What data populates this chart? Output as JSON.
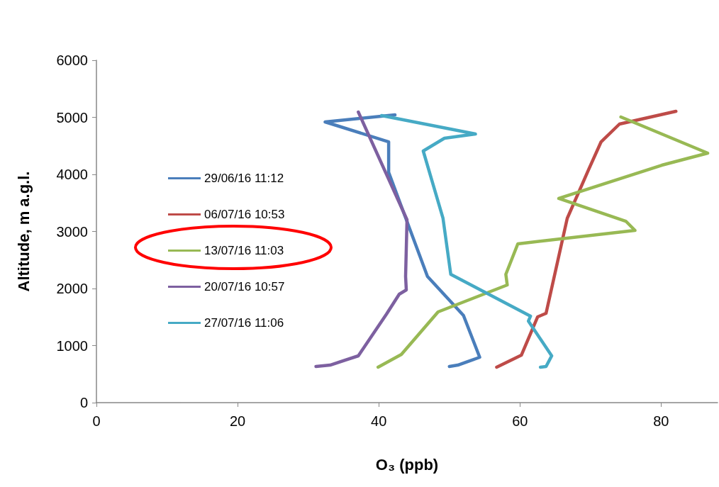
{
  "chart_data": {
    "type": "line",
    "xlabel": "O₃ (ppb)",
    "ylabel": "Altitude, m a.g.l.",
    "xlim": [
      0,
      88
    ],
    "xticks": [
      0,
      20,
      40,
      60,
      80
    ],
    "ylim": [
      0,
      6000
    ],
    "yticks": [
      0,
      1000,
      2000,
      3000,
      4000,
      5000,
      6000
    ],
    "grid": false,
    "legend": "left",
    "marker": "none",
    "line_style": "solid",
    "series": [
      {
        "name": "29/06/16 11:12",
        "color": "#4a7ebb",
        "x": [
          50.0,
          51.2,
          54.3,
          52.0,
          46.9,
          41.4,
          41.4,
          32.4,
          42.3
        ],
        "values": [
          634,
          658,
          795,
          1528,
          2211,
          4037,
          4571,
          4919,
          5043
        ]
      },
      {
        "name": "06/07/16 10:53",
        "color": "#be4b48",
        "x": [
          56.7,
          60.2,
          62.5,
          63.7,
          66.7,
          69.7,
          71.5,
          74.1,
          82.1
        ],
        "values": [
          621,
          832,
          1503,
          1565,
          3230,
          4075,
          4571,
          4882,
          5106
        ]
      },
      {
        "name": "13/07/16 11:03",
        "color": "#98b954",
        "x": [
          39.9,
          43.2,
          48.4,
          58.2,
          58.0,
          59.7,
          76.3,
          75.0,
          65.5,
          80.1,
          86.6,
          74.3
        ],
        "values": [
          621,
          845,
          1590,
          2062,
          2248,
          2783,
          3019,
          3180,
          3578,
          4161,
          4373,
          5006
        ]
      },
      {
        "name": "20/07/16 10:57",
        "color": "#7d60a0",
        "x": [
          31.1,
          33.1,
          37.1,
          41.1,
          42.9,
          43.9,
          43.8,
          44.0,
          37.1
        ],
        "values": [
          634,
          658,
          820,
          1553,
          1901,
          1975,
          2211,
          3205,
          5093
        ]
      },
      {
        "name": "27/07/16 11:06",
        "color": "#46aac5",
        "x": [
          62.9,
          63.7,
          64.5,
          61.2,
          61.5,
          50.2,
          49.1,
          46.3,
          49.3,
          53.7,
          40.4
        ],
        "values": [
          621,
          634,
          820,
          1429,
          1516,
          2248,
          3230,
          4410,
          4634,
          4708,
          5031
        ]
      }
    ]
  }
}
